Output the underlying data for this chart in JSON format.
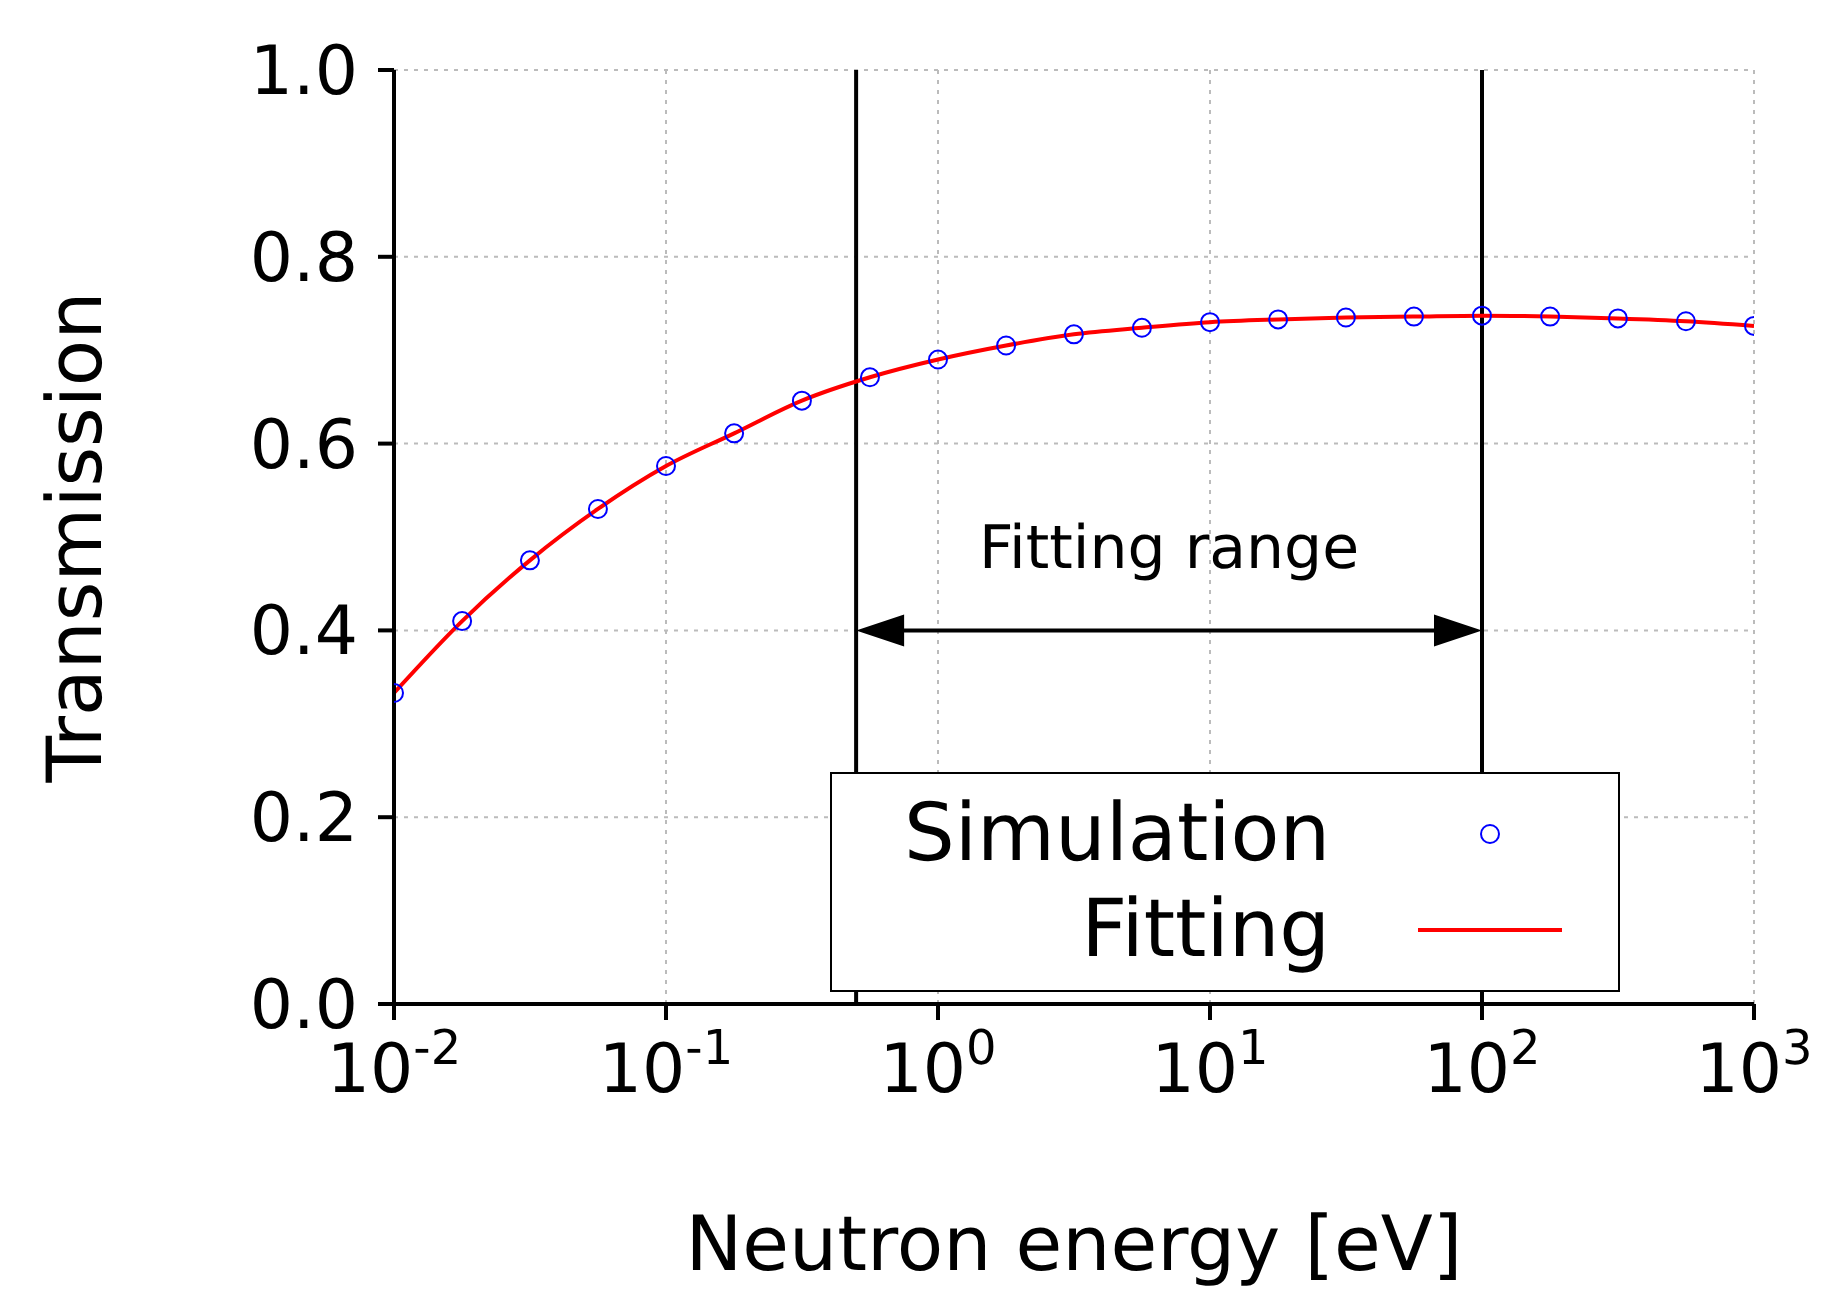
{
  "chart_data": {
    "type": "line",
    "xlabel": "Neutron energy [eV]",
    "ylabel": "Transmission",
    "x": [
      0.01,
      0.0178,
      0.0316,
      0.0562,
      0.1,
      0.178,
      0.316,
      0.562,
      1,
      1.78,
      3.16,
      5.62,
      10,
      17.8,
      31.6,
      56.2,
      100,
      178,
      316,
      562,
      1000
    ],
    "series": [
      {
        "name": "Simulation",
        "type": "scatter",
        "marker": "circle",
        "color": "#0000ff",
        "values": [
          0.333,
          0.41,
          0.475,
          0.53,
          0.576,
          0.611,
          0.646,
          0.671,
          0.69,
          0.705,
          0.717,
          0.724,
          0.73,
          0.733,
          0.735,
          0.736,
          0.737,
          0.736,
          0.734,
          0.731,
          0.726
        ]
      },
      {
        "name": "Fitting",
        "type": "line",
        "marker": "none",
        "color": "#ff0000",
        "values": [
          0.333,
          0.41,
          0.475,
          0.53,
          0.576,
          0.611,
          0.646,
          0.671,
          0.69,
          0.705,
          0.717,
          0.724,
          0.73,
          0.733,
          0.735,
          0.736,
          0.737,
          0.736,
          0.734,
          0.731,
          0.726
        ]
      }
    ],
    "log": "x",
    "xlim": [
      0.01,
      1000
    ],
    "xticks": [
      {
        "value": 0.01,
        "label": "10$^{-2}$"
      },
      {
        "value": 0.1,
        "label": "10$^{-1}$"
      },
      {
        "value": 1,
        "label": "10$^{0}$"
      },
      {
        "value": 10,
        "label": "10$^{1}$"
      },
      {
        "value": 100,
        "label": "10$^{2}$"
      },
      {
        "value": 1000,
        "label": "10$^{3}$"
      }
    ],
    "ylim": [
      0,
      1
    ],
    "yticks": [
      {
        "value": 0,
        "label": "0.0"
      },
      {
        "value": 0.2,
        "label": "0.2"
      },
      {
        "value": 0.4,
        "label": "0.4"
      },
      {
        "value": 0.6,
        "label": "0.6"
      },
      {
        "value": 0.8,
        "label": "0.8"
      },
      {
        "value": 1,
        "label": "1.0"
      }
    ],
    "ref_lines": [
      {
        "axis": "x",
        "value": 0.5,
        "color": "#000000"
      },
      {
        "axis": "x",
        "value": 100,
        "color": "#000000"
      }
    ],
    "annotations": [
      "Fitting range"
    ],
    "grid": true,
    "legend": "bottom right"
  }
}
